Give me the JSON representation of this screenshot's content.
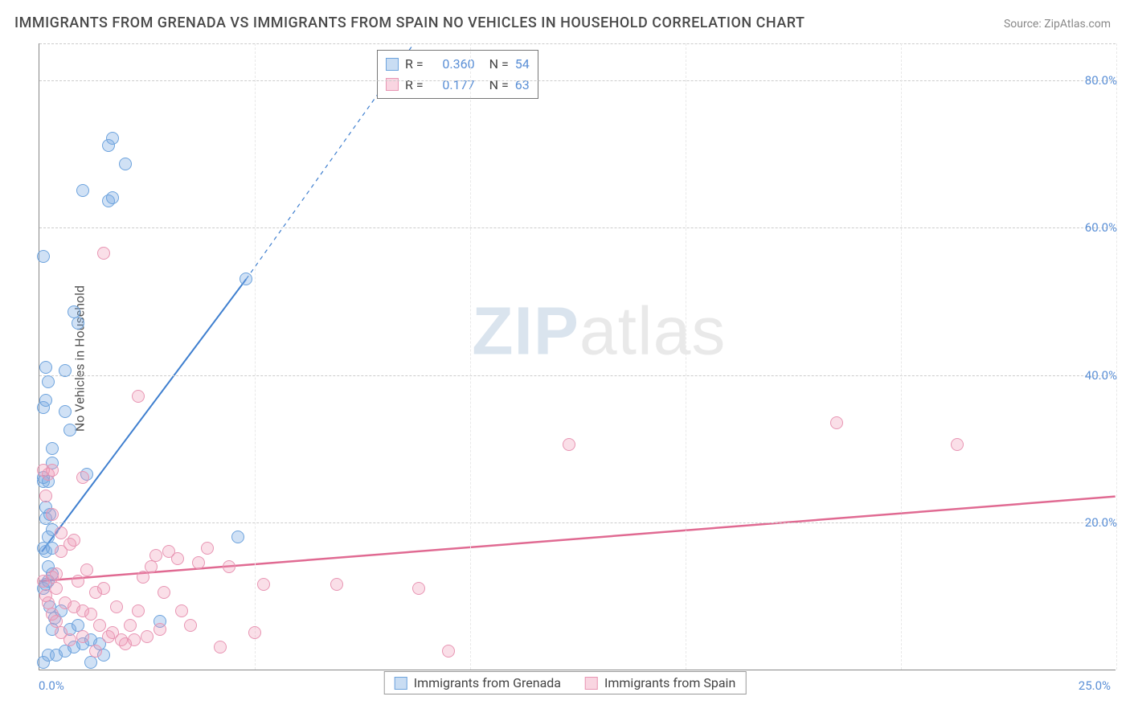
{
  "title": "IMMIGRANTS FROM GRENADA VS IMMIGRANTS FROM SPAIN NO VEHICLES IN HOUSEHOLD CORRELATION CHART",
  "source": "Source: ZipAtlas.com",
  "ylabel": "No Vehicles in Household",
  "watermark": {
    "part1": "ZIP",
    "part2": "atlas"
  },
  "chart": {
    "type": "scatter",
    "background_color": "#ffffff",
    "grid_color": "#cccccc",
    "xlim": [
      0,
      25
    ],
    "ylim": [
      0,
      85
    ],
    "xticks": [
      0,
      5,
      10,
      15,
      20,
      25
    ],
    "yticks": [
      20,
      40,
      60,
      80
    ],
    "xtick_labels": {
      "min": "0.0%",
      "max": "25.0%"
    },
    "ytick_labels": [
      "20.0%",
      "40.0%",
      "60.0%",
      "80.0%"
    ],
    "tick_color": "#5a8fd6",
    "tick_fontsize": 15,
    "series": [
      {
        "name": "Immigrants from Grenada",
        "key": "grenada",
        "fill_color": "rgba(120,170,225,0.35)",
        "stroke_color": "#6da3dd",
        "marker_size": 16,
        "r_value": "0.360",
        "n_value": "54",
        "trendline": {
          "color": "#3f7fcf",
          "width": 2,
          "x0": 0.05,
          "y0": 16.0,
          "x1": 4.8,
          "y1": 53.0,
          "dashed_extend": {
            "x1": 8.7,
            "y1": 85.0
          }
        },
        "points": [
          [
            0.1,
            1.0
          ],
          [
            0.2,
            2.0
          ],
          [
            0.4,
            2.0
          ],
          [
            0.6,
            2.5
          ],
          [
            0.8,
            3.0
          ],
          [
            1.0,
            3.5
          ],
          [
            1.2,
            4.0
          ],
          [
            1.2,
            1.0
          ],
          [
            1.4,
            3.5
          ],
          [
            1.5,
            2.0
          ],
          [
            0.1,
            11.0
          ],
          [
            0.15,
            11.5
          ],
          [
            0.2,
            12.0
          ],
          [
            0.3,
            13.0
          ],
          [
            0.2,
            14.0
          ],
          [
            0.15,
            16.0
          ],
          [
            0.1,
            16.5
          ],
          [
            0.3,
            16.5
          ],
          [
            0.2,
            18.0
          ],
          [
            0.3,
            19.0
          ],
          [
            0.15,
            20.5
          ],
          [
            0.25,
            21.0
          ],
          [
            0.15,
            22.0
          ],
          [
            0.1,
            25.5
          ],
          [
            0.2,
            25.5
          ],
          [
            0.3,
            28.0
          ],
          [
            1.1,
            26.5
          ],
          [
            0.7,
            32.5
          ],
          [
            0.6,
            35.0
          ],
          [
            0.1,
            35.5
          ],
          [
            0.15,
            36.5
          ],
          [
            0.2,
            39.0
          ],
          [
            0.6,
            40.5
          ],
          [
            0.15,
            41.0
          ],
          [
            0.9,
            47.0
          ],
          [
            0.8,
            48.5
          ],
          [
            0.1,
            56.0
          ],
          [
            1.6,
            63.5
          ],
          [
            1.7,
            64.0
          ],
          [
            1.0,
            65.0
          ],
          [
            2.0,
            68.5
          ],
          [
            1.6,
            71.0
          ],
          [
            1.7,
            72.0
          ],
          [
            4.8,
            53.0
          ],
          [
            4.6,
            18.0
          ],
          [
            2.8,
            6.5
          ],
          [
            0.3,
            30.0
          ],
          [
            0.1,
            26.0
          ],
          [
            0.25,
            8.5
          ],
          [
            0.35,
            7.0
          ],
          [
            0.5,
            8.0
          ],
          [
            0.7,
            5.5
          ],
          [
            0.9,
            6.0
          ],
          [
            0.3,
            5.5
          ]
        ]
      },
      {
        "name": "Immigrants from Spain",
        "key": "spain",
        "fill_color": "rgba(240,150,180,0.3)",
        "stroke_color": "#e895b3",
        "marker_size": 16,
        "r_value": "0.177",
        "n_value": "63",
        "trendline": {
          "color": "#e06a92",
          "width": 2.5,
          "x0": 0.0,
          "y0": 12.0,
          "x1": 25.0,
          "y1": 23.5
        },
        "points": [
          [
            0.1,
            12.0
          ],
          [
            0.3,
            12.5
          ],
          [
            0.4,
            13.0
          ],
          [
            0.5,
            16.0
          ],
          [
            0.7,
            17.0
          ],
          [
            0.8,
            17.5
          ],
          [
            0.5,
            18.5
          ],
          [
            0.3,
            21.0
          ],
          [
            0.15,
            23.5
          ],
          [
            0.2,
            26.5
          ],
          [
            0.1,
            27.0
          ],
          [
            0.3,
            27.0
          ],
          [
            1.3,
            10.5
          ],
          [
            1.5,
            11.0
          ],
          [
            1.8,
            8.5
          ],
          [
            1.7,
            5.0
          ],
          [
            1.9,
            4.0
          ],
          [
            2.1,
            6.0
          ],
          [
            2.3,
            8.0
          ],
          [
            2.6,
            14.0
          ],
          [
            2.7,
            15.5
          ],
          [
            1.0,
            8.0
          ],
          [
            1.2,
            7.5
          ],
          [
            1.4,
            6.0
          ],
          [
            1.6,
            4.5
          ],
          [
            2.0,
            3.5
          ],
          [
            2.2,
            4.0
          ],
          [
            2.5,
            4.5
          ],
          [
            2.8,
            5.5
          ],
          [
            3.3,
            8.0
          ],
          [
            3.5,
            6.0
          ],
          [
            3.7,
            14.5
          ],
          [
            3.9,
            16.5
          ],
          [
            4.2,
            3.0
          ],
          [
            4.4,
            14.0
          ],
          [
            5.0,
            5.0
          ],
          [
            5.2,
            11.5
          ],
          [
            6.9,
            11.5
          ],
          [
            8.8,
            11.0
          ],
          [
            9.5,
            2.5
          ],
          [
            12.3,
            30.5
          ],
          [
            18.5,
            33.5
          ],
          [
            21.3,
            30.5
          ],
          [
            1.0,
            26.0
          ],
          [
            2.3,
            37.0
          ],
          [
            1.5,
            56.5
          ],
          [
            0.4,
            11.0
          ],
          [
            0.6,
            9.0
          ],
          [
            0.8,
            8.5
          ],
          [
            0.9,
            12.0
          ],
          [
            1.1,
            13.5
          ],
          [
            1.3,
            2.5
          ],
          [
            1.0,
            4.5
          ],
          [
            0.7,
            4.0
          ],
          [
            0.5,
            5.0
          ],
          [
            0.4,
            6.5
          ],
          [
            0.3,
            7.5
          ],
          [
            0.2,
            9.0
          ],
          [
            0.15,
            10.0
          ],
          [
            3.0,
            16.0
          ],
          [
            3.2,
            15.0
          ],
          [
            2.9,
            10.5
          ],
          [
            2.4,
            12.5
          ]
        ]
      }
    ]
  },
  "legend_top": {
    "r_label": "R =",
    "n_label": "N ="
  },
  "legend_bottom": {
    "items": [
      "Immigrants from Grenada",
      "Immigrants from Spain"
    ]
  }
}
